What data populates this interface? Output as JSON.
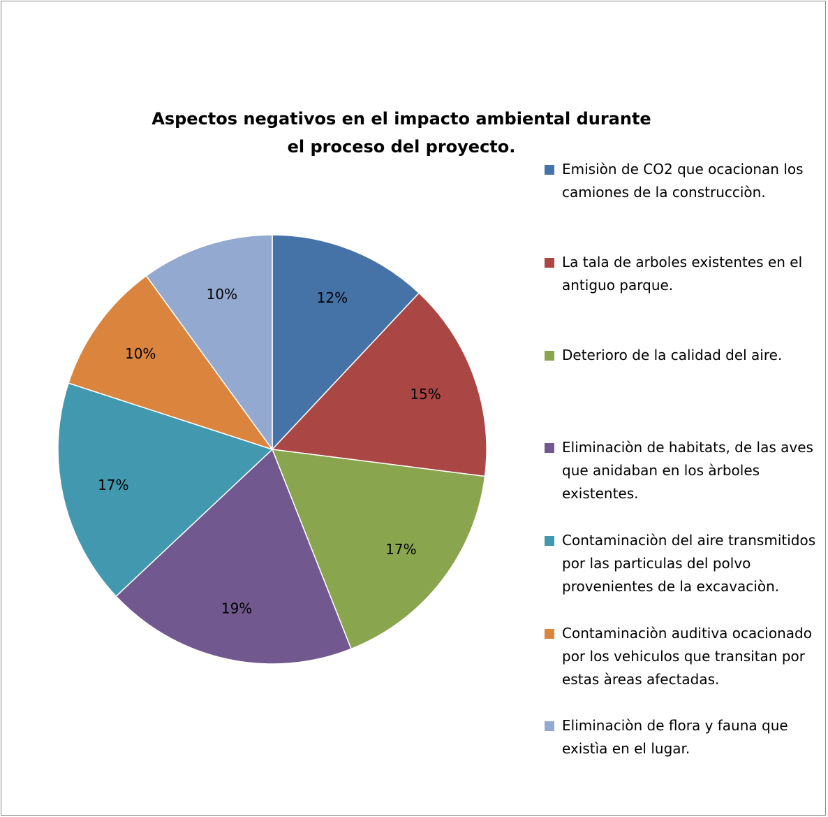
{
  "chart_data": {
    "type": "pie",
    "title": "Aspectos negativos en el impacto ambiental  durante el proceso del proyecto.",
    "title_lines": [
      "Aspectos negativos en el impacto ambiental  durante",
      "el proceso del proyecto."
    ],
    "legend_position": "right",
    "slices": [
      {
        "label": "Emisiòn de CO2 que ocacionan los camiones de la construcciòn.",
        "value": 12,
        "display": "12%",
        "color": "#4572A7"
      },
      {
        "label": "La tala de arboles existentes en el antiguo parque.",
        "value": 15,
        "display": "15%",
        "color": "#AA4643"
      },
      {
        "label": "Deterioro de la calidad del aire.",
        "value": 17,
        "display": "17%",
        "color": "#89A54E"
      },
      {
        "label": "Eliminaciòn de habitats, de las aves que anidaban en los àrboles existentes.",
        "value": 19,
        "display": "19%",
        "color": "#71588F"
      },
      {
        "label": "Contaminaciòn del aire transmitidos por las particulas del polvo provenientes de la excavaciòn.",
        "value": 17,
        "display": "17%",
        "color": "#4198AF"
      },
      {
        "label": "Contaminaciòn auditiva ocacionado por los vehiculos que transitan por estas àreas afectadas.",
        "value": 10,
        "display": "10%",
        "color": "#DB843D"
      },
      {
        "label": "Eliminaciòn de flora y fauna que existìa en el lugar.",
        "value": 10,
        "display": "10%",
        "color": "#93A9CF"
      }
    ]
  }
}
